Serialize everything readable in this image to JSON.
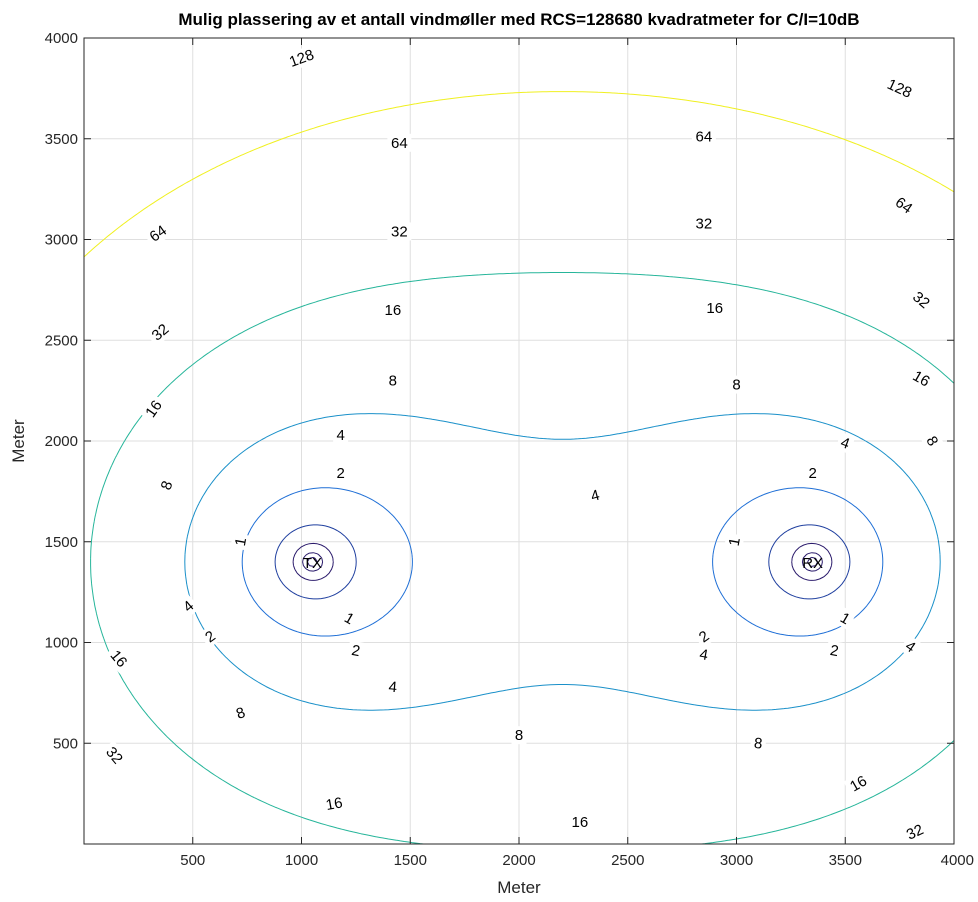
{
  "chart_data": {
    "type": "contour",
    "title": "Mulig plassering av et antall vindmøller med RCS=128680 kvadratmeter for C/I=10dB",
    "xlabel": "Meter",
    "ylabel": "Meter",
    "xlim": [
      0,
      4000
    ],
    "ylim": [
      0,
      4000
    ],
    "grid": true,
    "xticks": [
      500,
      1000,
      1500,
      2000,
      2500,
      3000,
      3500,
      4000
    ],
    "yticks": [
      500,
      1000,
      1500,
      2000,
      2500,
      3000,
      3500,
      4000
    ],
    "sites": [
      {
        "label": "TX",
        "x": 1050,
        "y": 1400
      },
      {
        "label": "RX",
        "x": 3350,
        "y": 1400
      }
    ],
    "levels": [
      1,
      2,
      4,
      8,
      16,
      32,
      64,
      128
    ],
    "level_colors": {
      "1": "#2a1a6b",
      "2": "#2a1a6b",
      "4": "#2a1a6b",
      "8": "#1f3f9f",
      "16": "#1f6fd6",
      "32": "#1a90c9",
      "64": "#26b59a",
      "128": "#f0f020"
    },
    "contour_labels": [
      {
        "text": "1",
        "x": 720,
        "y": 1500,
        "angle": 80
      },
      {
        "text": "1",
        "x": 1220,
        "y": 1120,
        "angle": -30
      },
      {
        "text": "1",
        "x": 2990,
        "y": 1500,
        "angle": 80
      },
      {
        "text": "1",
        "x": 3500,
        "y": 1120,
        "angle": -30
      },
      {
        "text": "2",
        "x": 1180,
        "y": 1840,
        "angle": 0
      },
      {
        "text": "2",
        "x": 580,
        "y": 1030,
        "angle": 35
      },
      {
        "text": "2",
        "x": 1250,
        "y": 960,
        "angle": -10
      },
      {
        "text": "2",
        "x": 3350,
        "y": 1840,
        "angle": 0
      },
      {
        "text": "2",
        "x": 2850,
        "y": 1030,
        "angle": 35
      },
      {
        "text": "2",
        "x": 3450,
        "y": 960,
        "angle": -10
      },
      {
        "text": "4",
        "x": 1180,
        "y": 2030,
        "angle": 0
      },
      {
        "text": "4",
        "x": 2350,
        "y": 1730,
        "angle": 15
      },
      {
        "text": "4",
        "x": 3500,
        "y": 1990,
        "angle": -20
      },
      {
        "text": "4",
        "x": 480,
        "y": 1180,
        "angle": 40
      },
      {
        "text": "4",
        "x": 1420,
        "y": 780,
        "angle": -5
      },
      {
        "text": "4",
        "x": 2850,
        "y": 940,
        "angle": -10
      },
      {
        "text": "4",
        "x": 3800,
        "y": 980,
        "angle": -35
      },
      {
        "text": "8",
        "x": 1420,
        "y": 2300,
        "angle": 0
      },
      {
        "text": "8",
        "x": 3000,
        "y": 2280,
        "angle": 0
      },
      {
        "text": "8",
        "x": 380,
        "y": 1780,
        "angle": 70
      },
      {
        "text": "8",
        "x": 3900,
        "y": 2000,
        "angle": -60
      },
      {
        "text": "8",
        "x": 720,
        "y": 650,
        "angle": 20
      },
      {
        "text": "8",
        "x": 2000,
        "y": 540,
        "angle": 0
      },
      {
        "text": "8",
        "x": 3100,
        "y": 500,
        "angle": -5
      },
      {
        "text": "16",
        "x": 1420,
        "y": 2650,
        "angle": 0
      },
      {
        "text": "16",
        "x": 2900,
        "y": 2660,
        "angle": 0
      },
      {
        "text": "16",
        "x": 320,
        "y": 2160,
        "angle": 55
      },
      {
        "text": "16",
        "x": 3850,
        "y": 2310,
        "angle": -30
      },
      {
        "text": "16",
        "x": 160,
        "y": 920,
        "angle": -50
      },
      {
        "text": "16",
        "x": 1150,
        "y": 200,
        "angle": 10
      },
      {
        "text": "16",
        "x": 2280,
        "y": 110,
        "angle": 0
      },
      {
        "text": "16",
        "x": 3560,
        "y": 300,
        "angle": 30
      },
      {
        "text": "32",
        "x": 1450,
        "y": 3040,
        "angle": 0
      },
      {
        "text": "32",
        "x": 2850,
        "y": 3080,
        "angle": 0
      },
      {
        "text": "32",
        "x": 350,
        "y": 2540,
        "angle": 40
      },
      {
        "text": "32",
        "x": 3850,
        "y": 2700,
        "angle": -40
      },
      {
        "text": "32",
        "x": 140,
        "y": 440,
        "angle": -50
      },
      {
        "text": "32",
        "x": 3820,
        "y": 60,
        "angle": 25
      },
      {
        "text": "64",
        "x": 1450,
        "y": 3480,
        "angle": 0
      },
      {
        "text": "64",
        "x": 2850,
        "y": 3510,
        "angle": 0
      },
      {
        "text": "64",
        "x": 340,
        "y": 3030,
        "angle": 35
      },
      {
        "text": "64",
        "x": 3770,
        "y": 3170,
        "angle": -35
      },
      {
        "text": "128",
        "x": 1000,
        "y": 3900,
        "angle": 20
      },
      {
        "text": "128",
        "x": 3750,
        "y": 3750,
        "angle": -25
      }
    ]
  }
}
